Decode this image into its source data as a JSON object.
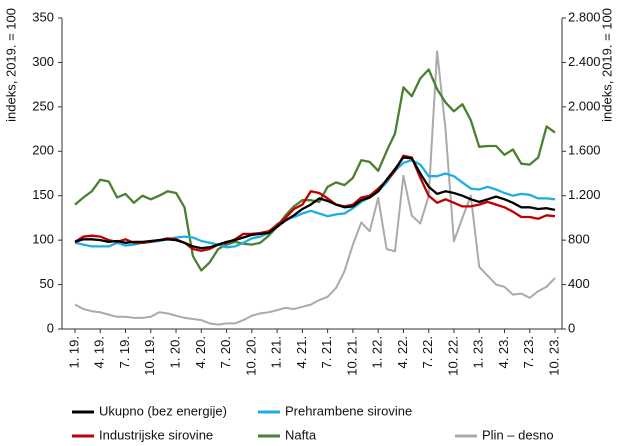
{
  "chart_data": {
    "type": "line",
    "y_label": "indeks, 2019. = 100",
    "y2_label": "indeks, 2019. = 100",
    "categories": [
      "1. 19.",
      null,
      null,
      "4. 19.",
      null,
      null,
      "7. 19.",
      null,
      null,
      "10. 19.",
      null,
      null,
      "1. 20.",
      null,
      null,
      "4. 20.",
      null,
      null,
      "7. 20.",
      null,
      null,
      "10. 20.",
      null,
      null,
      "1. 21.",
      null,
      null,
      "4. 21.",
      null,
      null,
      "7. 21.",
      null,
      null,
      "10. 21.",
      null,
      null,
      "1. 22.",
      null,
      null,
      "4. 22.",
      null,
      null,
      "7. 22.",
      null,
      null,
      "10. 22.",
      null,
      null,
      "1. 23.",
      null,
      null,
      "4. 23.",
      null,
      null,
      "7. 23.",
      null,
      null,
      "10. 23."
    ],
    "ylim": [
      0,
      350
    ],
    "yticks": [
      0,
      50,
      100,
      150,
      200,
      250,
      300,
      350
    ],
    "y2lim": [
      0,
      2800
    ],
    "y2ticks": [
      0,
      400,
      800,
      {
        "value": 1200,
        "label": "1.200"
      },
      {
        "value": 1600,
        "label": "1.600"
      },
      {
        "value": 2000,
        "label": "2.000"
      },
      {
        "value": 2400,
        "label": "2.400"
      },
      {
        "value": 2800,
        "label": "2.800"
      }
    ],
    "series": [
      {
        "name": "Ukupno (bez energije)",
        "color": "#000000",
        "values": [
          98,
          101,
          101,
          100,
          98,
          99,
          97,
          98,
          98,
          99,
          100,
          101,
          100,
          97,
          93,
          91,
          92,
          95,
          98,
          100,
          103,
          106,
          107,
          108,
          115,
          122,
          128,
          135,
          140,
          147,
          144,
          140,
          137,
          138,
          145,
          148,
          155,
          168,
          180,
          193,
          192,
          175,
          160,
          152,
          155,
          153,
          150,
          146,
          143,
          146,
          149,
          146,
          142,
          137,
          137,
          135,
          136,
          134
        ]
      },
      {
        "name": "Prehrambene sirovine",
        "color": "#1eaee6",
        "values": [
          97,
          95,
          93,
          93,
          93,
          97,
          94,
          95,
          97,
          98,
          99,
          101,
          103,
          104,
          103,
          99,
          97,
          95,
          92,
          93,
          97,
          102,
          104,
          108,
          118,
          123,
          126,
          130,
          133,
          130,
          127,
          129,
          130,
          136,
          143,
          148,
          155,
          165,
          178,
          187,
          190,
          185,
          172,
          172,
          175,
          172,
          165,
          158,
          157,
          160,
          157,
          153,
          150,
          152,
          151,
          147,
          147,
          146
        ]
      },
      {
        "name": "Industrijske sirovine",
        "color": "#c00000",
        "values": [
          98,
          104,
          105,
          104,
          100,
          98,
          101,
          97,
          97,
          98,
          100,
          102,
          101,
          97,
          90,
          88,
          90,
          95,
          97,
          101,
          107,
          107,
          108,
          110,
          117,
          125,
          135,
          140,
          155,
          153,
          147,
          140,
          138,
          140,
          148,
          150,
          158,
          167,
          178,
          195,
          193,
          170,
          150,
          142,
          146,
          142,
          138,
          138,
          140,
          143,
          140,
          137,
          132,
          126,
          126,
          124,
          128,
          127
        ]
      },
      {
        "name": "Nafta",
        "color": "#4a8030",
        "values": [
          140,
          148,
          155,
          168,
          166,
          148,
          152,
          142,
          150,
          146,
          150,
          155,
          153,
          137,
          82,
          66,
          75,
          90,
          95,
          98,
          96,
          95,
          97,
          105,
          115,
          128,
          138,
          145,
          145,
          143,
          160,
          165,
          162,
          170,
          190,
          188,
          178,
          200,
          220,
          272,
          262,
          282,
          292,
          270,
          255,
          245,
          253,
          235,
          205,
          206,
          206,
          196,
          202,
          186,
          185,
          193,
          228,
          221
        ]
      },
      {
        "name": "Plin – desno",
        "color": "#aaaaaa",
        "axis": "y2",
        "values": [
          220,
          180,
          160,
          150,
          130,
          110,
          110,
          100,
          100,
          110,
          150,
          140,
          120,
          100,
          90,
          80,
          50,
          40,
          50,
          50,
          80,
          120,
          140,
          150,
          170,
          190,
          180,
          200,
          220,
          260,
          290,
          370,
          520,
          760,
          960,
          880,
          1180,
          720,
          700,
          1380,
          1020,
          950,
          1200,
          2500,
          1800,
          790,
          1000,
          1200,
          560,
          480,
          400,
          380,
          310,
          320,
          280,
          340,
          380,
          460
        ]
      }
    ]
  }
}
